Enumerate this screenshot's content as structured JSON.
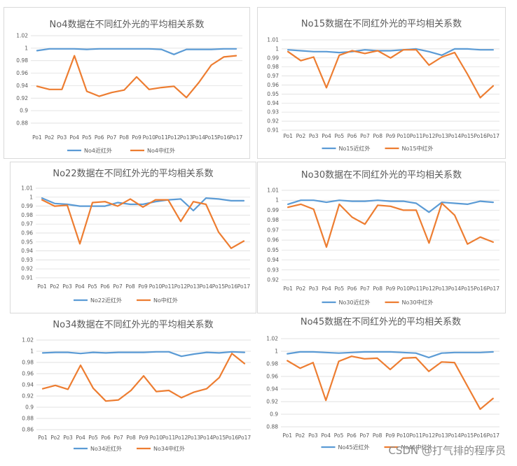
{
  "colors": {
    "near_ir": "#5b9bd5",
    "mid_ir": "#ed7d31",
    "grid": "#d9d9d9",
    "text": "#595959"
  },
  "watermark": "CSDN @打气排的程序员",
  "chart_data": [
    {
      "type": "line",
      "title": "No4数据在不同红外光的平均相关系数",
      "categories": [
        "Po1",
        "Po2",
        "Po3",
        "Po4",
        "Po5",
        "Po6",
        "Po7",
        "Po8",
        "Po9",
        "Po10",
        "Po11",
        "Po12",
        "Po13",
        "Po14",
        "Po15",
        "Po16",
        "Po17"
      ],
      "ylim": [
        0.88,
        1.02
      ],
      "yticks": [
        "0.88",
        "0.9",
        "0.92",
        "0.94",
        "0.96",
        "0.98",
        "1",
        "1.02"
      ],
      "grid": true,
      "legend": "bottom",
      "series": [
        {
          "name": "No4近红外",
          "color": "#5b9bd5",
          "values": [
            0.996,
            0.999,
            0.999,
            0.999,
            0.998,
            0.999,
            0.999,
            0.999,
            0.999,
            0.999,
            0.998,
            0.99,
            0.998,
            0.998,
            0.998,
            0.999,
            0.999
          ]
        },
        {
          "name": "No4中红外",
          "color": "#ed7d31",
          "values": [
            0.939,
            0.934,
            0.934,
            0.988,
            0.931,
            0.923,
            0.929,
            0.933,
            0.954,
            0.934,
            0.937,
            0.939,
            0.921,
            0.945,
            0.973,
            0.986,
            0.988
          ]
        }
      ]
    },
    {
      "type": "line",
      "title": "No15数据在不同红外光的平均相关系数",
      "categories": [
        "Po1",
        "Po2",
        "Po3",
        "Po4",
        "Po5",
        "Po6",
        "Po7",
        "Po8",
        "Po9",
        "Po10",
        "Po11",
        "Po12",
        "Po13",
        "Po14",
        "Po15",
        "Po16",
        "Po17"
      ],
      "ylim": [
        0.91,
        1.01
      ],
      "yticks": [
        "0.91",
        "0.92",
        "0.93",
        "0.94",
        "0.95",
        "0.96",
        "0.97",
        "0.98",
        "0.99",
        "1",
        "1.01"
      ],
      "grid": true,
      "legend": "bottom",
      "series": [
        {
          "name": "No15近红外",
          "color": "#5b9bd5",
          "values": [
            0.999,
            0.998,
            0.997,
            0.997,
            0.996,
            0.997,
            0.999,
            0.998,
            0.998,
            0.999,
            1.0,
            0.997,
            0.993,
            1.0,
            1.0,
            0.999,
            0.999
          ]
        },
        {
          "name": "No15中红外",
          "color": "#ed7d31",
          "values": [
            0.997,
            0.987,
            0.991,
            0.957,
            0.993,
            0.998,
            0.995,
            0.998,
            0.99,
            0.999,
            0.999,
            0.982,
            0.991,
            0.996,
            0.972,
            0.946,
            0.959
          ]
        }
      ]
    },
    {
      "type": "line",
      "title": "No22数据在不同红外光的平均相关系数",
      "categories": [
        "Po1",
        "Po2",
        "Po3",
        "Po4",
        "Po5",
        "Po6",
        "Po7",
        "Po8",
        "Po9",
        "Po10",
        "Po11",
        "Po12",
        "Po13",
        "Po14",
        "Po15",
        "Po16",
        "Po17"
      ],
      "ylim": [
        0.91,
        1.01
      ],
      "yticks": [
        "0.91",
        "0.92",
        "0.93",
        "0.94",
        "0.95",
        "0.96",
        "0.97",
        "0.98",
        "0.99",
        "1",
        "1.01"
      ],
      "grid": true,
      "legend": "bottom",
      "series": [
        {
          "name": "No22近红外",
          "color": "#5b9bd5",
          "values": [
            0.999,
            0.993,
            0.992,
            0.99,
            0.99,
            0.99,
            0.994,
            0.992,
            0.992,
            0.995,
            0.997,
            0.998,
            0.985,
            0.999,
            0.998,
            0.996,
            0.996
          ]
        },
        {
          "name": "No中红外",
          "color": "#ed7d31",
          "values": [
            0.997,
            0.99,
            0.991,
            0.948,
            0.994,
            0.995,
            0.99,
            0.998,
            0.989,
            0.997,
            0.997,
            0.973,
            0.995,
            0.992,
            0.961,
            0.943,
            0.951
          ]
        }
      ]
    },
    {
      "type": "line",
      "title": "No30数据在不同红外光的平均相关系数",
      "categories": [
        "Po1",
        "Po2",
        "Po3",
        "Po4",
        "Po5",
        "Po6",
        "Po7",
        "Po8",
        "Po9",
        "Po10",
        "Po11",
        "Po12",
        "Po13",
        "Po14",
        "Po15",
        "Po16",
        "Po17"
      ],
      "ylim": [
        0.92,
        1.01
      ],
      "yticks": [
        "0.92",
        "0.93",
        "0.94",
        "0.95",
        "0.96",
        "0.97",
        "0.98",
        "0.99",
        "1",
        "1.01"
      ],
      "grid": true,
      "legend": "bottom",
      "series": [
        {
          "name": "No30近红外",
          "color": "#5b9bd5",
          "values": [
            0.996,
            1.0,
            1.0,
            0.998,
            1.0,
            0.999,
            0.999,
            1.0,
            0.999,
            0.999,
            0.997,
            0.988,
            0.998,
            0.997,
            0.996,
            0.999,
            0.998
          ]
        },
        {
          "name": "No30中红外",
          "color": "#ed7d31",
          "values": [
            0.993,
            0.996,
            0.991,
            0.953,
            0.996,
            0.983,
            0.976,
            0.995,
            0.994,
            0.99,
            0.99,
            0.957,
            0.997,
            0.985,
            0.956,
            0.963,
            0.958
          ]
        }
      ]
    },
    {
      "type": "line",
      "title": "No34数据在不同红外光的平均相关系数",
      "categories": [
        "Po1",
        "Po2",
        "Po3",
        "Po4",
        "Po5",
        "Po6",
        "Po7",
        "Po8",
        "Po9",
        "Po10",
        "Po11",
        "Po12",
        "Po13",
        "Po14",
        "Po15",
        "Po16",
        "Po17"
      ],
      "ylim": [
        0.86,
        1.02
      ],
      "yticks": [
        "0.86",
        "0.88",
        "0.9",
        "0.92",
        "0.94",
        "0.96",
        "0.98",
        "1",
        "1.02"
      ],
      "grid": true,
      "legend": "bottom",
      "series": [
        {
          "name": "No34近红外",
          "color": "#5b9bd5",
          "values": [
            0.997,
            0.998,
            0.998,
            0.996,
            0.998,
            0.997,
            0.998,
            0.998,
            0.998,
            0.999,
            0.999,
            0.991,
            0.995,
            0.998,
            0.997,
            0.999,
            0.998
          ]
        },
        {
          "name": "No34中红外",
          "color": "#ed7d31",
          "values": [
            0.933,
            0.939,
            0.932,
            0.975,
            0.934,
            0.911,
            0.913,
            0.93,
            0.956,
            0.928,
            0.93,
            0.917,
            0.927,
            0.933,
            0.953,
            0.996,
            0.978
          ]
        }
      ]
    },
    {
      "type": "line",
      "title": "No45数据在不同红外光的平均相关系数",
      "categories": [
        "Po1",
        "Po2",
        "Po3",
        "Po4",
        "Po5",
        "Po6",
        "Po7",
        "Po8",
        "Po9",
        "Po10",
        "Po11",
        "Po12",
        "Po13",
        "Po14",
        "Po15",
        "Po16",
        "Po17"
      ],
      "ylim": [
        0.88,
        1.02
      ],
      "yticks": [
        "0.88",
        "0.9",
        "0.92",
        "0.94",
        "0.96",
        "0.98",
        "1",
        "1.02"
      ],
      "grid": true,
      "legend": "bottom",
      "series": [
        {
          "name": "No45近红外",
          "color": "#5b9bd5",
          "values": [
            0.996,
            0.999,
            0.999,
            0.998,
            0.997,
            0.998,
            0.999,
            0.999,
            0.999,
            0.998,
            0.997,
            0.99,
            0.997,
            0.998,
            0.998,
            0.998,
            0.999
          ]
        },
        {
          "name": "No45中红外",
          "color": "#ed7d31",
          "values": [
            0.985,
            0.973,
            0.982,
            0.922,
            0.984,
            0.992,
            0.988,
            0.989,
            0.971,
            0.989,
            0.99,
            0.968,
            0.983,
            0.982,
            0.945,
            0.908,
            0.925
          ]
        }
      ]
    }
  ]
}
